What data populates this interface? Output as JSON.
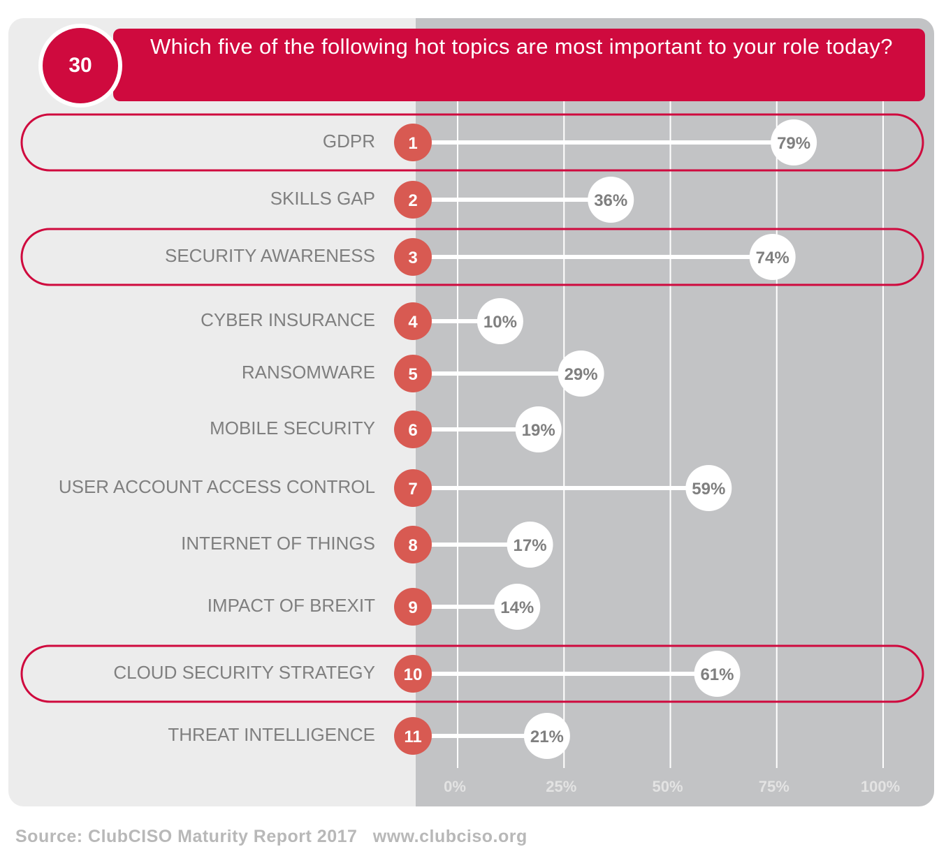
{
  "header": {
    "number": "30",
    "title": "Which five of the following hot topics are most important to your role today?"
  },
  "chart_data": {
    "type": "bar",
    "title": "Which five of the following hot topics are most important to your role today?",
    "categories": [
      "GDPR",
      "SKILLS GAP",
      "SECURITY AWARENESS",
      "CYBER INSURANCE",
      "RANSOMWARE",
      "MOBILE SECURITY",
      "USER ACCOUNT ACCESS CONTROL",
      "INTERNET OF THINGS",
      "IMPACT OF BREXIT",
      "CLOUD SECURITY STRATEGY",
      "THREAT INTELLIGENCE"
    ],
    "ranks": [
      "1",
      "2",
      "3",
      "4",
      "5",
      "6",
      "7",
      "8",
      "9",
      "10",
      "11"
    ],
    "values": [
      79,
      36,
      74,
      10,
      29,
      19,
      59,
      17,
      14,
      61,
      21
    ],
    "value_labels": [
      "79%",
      "36%",
      "74%",
      "10%",
      "29%",
      "19%",
      "59%",
      "17%",
      "14%",
      "61%",
      "21%"
    ],
    "highlighted": [
      "GDPR",
      "SECURITY AWARENESS",
      "CLOUD SECURITY STRATEGY"
    ],
    "xlim": [
      0,
      100
    ],
    "xticks": [
      0,
      25,
      50,
      75,
      100
    ],
    "xtick_labels": [
      "0%",
      "25%",
      "50%",
      "75%",
      "100%"
    ],
    "orientation": "horizontal",
    "grid": true,
    "colors": {
      "accent": "#cf0a3e",
      "rank_circle": "#d85a52",
      "bar": "#ffffff",
      "plot_background": "#c2c3c5",
      "label_text": "#7f7f7f"
    }
  },
  "source": "Source: ClubCISO Maturity Report 2017   www.clubciso.org"
}
